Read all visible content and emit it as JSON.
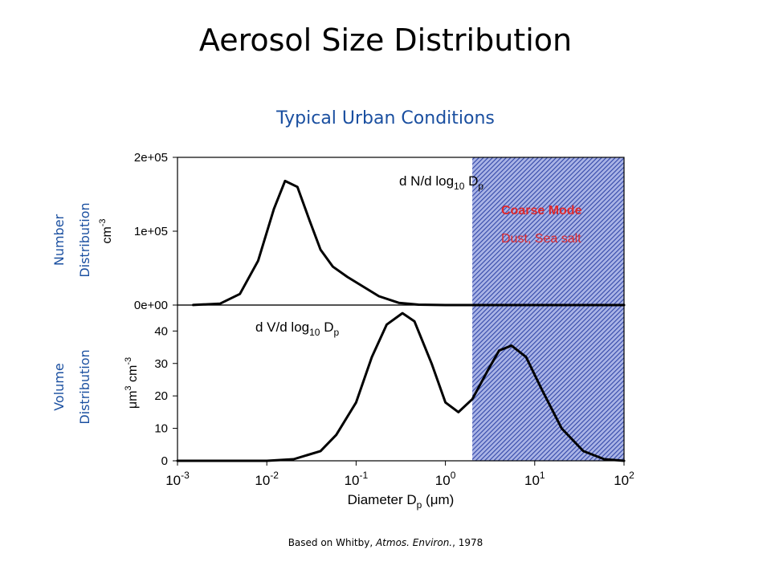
{
  "slide": {
    "title": "Aerosol Size Distribution",
    "subtitle": "Typical Urban Conditions",
    "left_labels": {
      "number": [
        "Number",
        "Distribution"
      ],
      "volume": [
        "Volume",
        "Distribution"
      ]
    },
    "citation": {
      "prefix": "Based on Whitby, ",
      "journal": "Atmos. Environ.",
      "suffix": ", 1978"
    }
  },
  "colors": {
    "accent_text": "#1a4fa0",
    "coarse_shade": "#3247a8",
    "coarse_text": "#e0292c",
    "curve": "#000000"
  },
  "chart_data": [
    {
      "type": "line",
      "title": "d N/d log10 Dp",
      "ylabel": "cm-3",
      "xscale": "log",
      "xlim": [
        0.001,
        100
      ],
      "ylim": [
        0,
        200000
      ],
      "ytick_labels": [
        "0e+00",
        "1e+05",
        "2e+05"
      ],
      "yticks": [
        0,
        100000,
        200000
      ],
      "shaded_region": {
        "x": [
          2,
          100
        ],
        "label": "Coarse Mode",
        "sublabel": "Dust, Sea salt"
      },
      "series": [
        {
          "x": [
            0.0015,
            0.003,
            0.005,
            0.008,
            0.012,
            0.016,
            0.022,
            0.03,
            0.04,
            0.055,
            0.08,
            0.12,
            0.18,
            0.3,
            0.5,
            1.0,
            2.0,
            100
          ],
          "y": [
            100,
            2000,
            15000,
            60000,
            130000,
            168000,
            160000,
            115000,
            75000,
            52000,
            38000,
            25000,
            12000,
            3000,
            500,
            0,
            0,
            0
          ]
        }
      ]
    },
    {
      "type": "line",
      "title": "d V/d log10 Dp",
      "ylabel": "μm3 cm-3",
      "xlabel": "Diameter Dp (μm)",
      "xscale": "log",
      "xlim": [
        0.001,
        100
      ],
      "ylim": [
        0,
        48
      ],
      "yticks": [
        0,
        10,
        20,
        30,
        40
      ],
      "xticks": [
        0.001,
        0.01,
        0.1,
        1,
        10,
        100
      ],
      "xtick_labels": [
        {
          "base": "10",
          "exp": "-3"
        },
        {
          "base": "10",
          "exp": "-2"
        },
        {
          "base": "10",
          "exp": "-1"
        },
        {
          "base": "10",
          "exp": "0"
        },
        {
          "base": "10",
          "exp": "1"
        },
        {
          "base": "10",
          "exp": "2"
        }
      ],
      "shaded_region": {
        "x": [
          2,
          100
        ]
      },
      "series": [
        {
          "x": [
            0.001,
            0.01,
            0.02,
            0.04,
            0.06,
            0.1,
            0.15,
            0.22,
            0.33,
            0.45,
            0.7,
            1.0,
            1.4,
            2.0,
            3.0,
            4.0,
            5.5,
            8.0,
            12,
            20,
            35,
            60,
            100
          ],
          "y": [
            0,
            0,
            0.5,
            3,
            8,
            18,
            32,
            42,
            45.5,
            43,
            30,
            18,
            15,
            19,
            28,
            34,
            35.5,
            32,
            22,
            10,
            3,
            0.5,
            0
          ]
        }
      ]
    }
  ]
}
